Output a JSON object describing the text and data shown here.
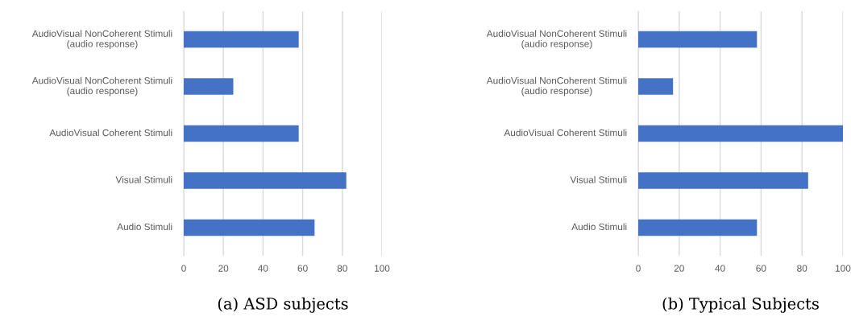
{
  "chart_data": [
    {
      "type": "bar",
      "orientation": "horizontal",
      "title": "(a) ASD subjects",
      "categories": [
        "AudioVisual NonCoherent Stimuli (audio response)",
        "AudioVisual NonCoherent Stimuli (audio response)",
        "AudioVisual Coherent Stimuli",
        "Visual Stimuli",
        "Audio Stimuli"
      ],
      "values": [
        58,
        25,
        58,
        82,
        66
      ],
      "color": "#4472c4",
      "xlim": [
        0,
        100
      ],
      "xticks": [
        0,
        20,
        40,
        60,
        80,
        100
      ],
      "grid": "x"
    },
    {
      "type": "bar",
      "orientation": "horizontal",
      "title": "(b) Typical Subjects",
      "categories": [
        "AudioVisual NonCoherent Stimuli (audio response)",
        "AudioVisual NonCoherent Stimuli (audio response)",
        "AudioVisual Coherent Stimuli",
        "Visual Stimuli",
        "Audio Stimuli"
      ],
      "values": [
        58,
        17,
        100,
        83,
        58
      ],
      "color": "#4472c4",
      "xlim": [
        0,
        100
      ],
      "xticks": [
        0,
        20,
        40,
        60,
        80,
        100
      ],
      "grid": "x"
    }
  ]
}
